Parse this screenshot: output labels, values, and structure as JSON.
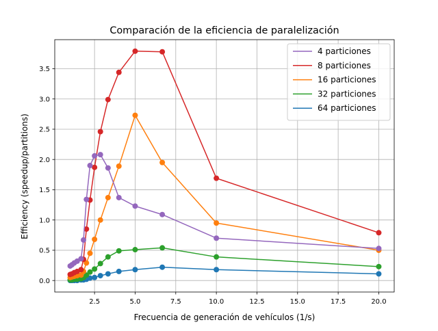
{
  "chart_data": {
    "type": "line",
    "title": "Comparación de la eficiencia de paralelización",
    "xlabel": "Frecuencia de generación de vehículos (1/s)",
    "ylabel": "Efficiency (speedup/partitions)",
    "xlim": [
      0.05,
      20.95
    ],
    "ylim": [
      -0.19,
      3.98
    ],
    "xticks": [
      2.5,
      5.0,
      7.5,
      10.0,
      12.5,
      15.0,
      17.5,
      20.0
    ],
    "xtick_labels": [
      "2.5",
      "5.0",
      "7.5",
      "10.0",
      "12.5",
      "15.0",
      "17.5",
      "20.0"
    ],
    "yticks": [
      0.0,
      0.5,
      1.0,
      1.5,
      2.0,
      2.5,
      3.0,
      3.5
    ],
    "ytick_labels": [
      "0.0",
      "0.5",
      "1.0",
      "1.5",
      "2.0",
      "2.5",
      "3.0",
      "3.5"
    ],
    "grid": true,
    "legend_position": "top-right",
    "series": [
      {
        "name": "4 particiones",
        "color": "#9467bd",
        "x": [
          1.0,
          1.11,
          1.25,
          1.43,
          1.67,
          1.82,
          2.0,
          2.22,
          2.5,
          2.86,
          3.33,
          4.0,
          5.0,
          6.67,
          10.0,
          20.0
        ],
        "y": [
          0.24,
          0.26,
          0.29,
          0.32,
          0.36,
          0.67,
          1.34,
          1.9,
          2.06,
          2.08,
          1.86,
          1.37,
          1.23,
          1.09,
          0.7,
          0.53
        ]
      },
      {
        "name": "8 particiones",
        "color": "#d62728",
        "x": [
          1.0,
          1.11,
          1.25,
          1.43,
          1.67,
          1.82,
          2.0,
          2.22,
          2.5,
          2.86,
          3.33,
          4.0,
          5.0,
          6.67,
          10.0,
          20.0
        ],
        "y": [
          0.1,
          0.11,
          0.13,
          0.15,
          0.18,
          0.35,
          0.85,
          1.33,
          1.87,
          2.46,
          2.99,
          3.44,
          3.79,
          3.78,
          1.69,
          0.79
        ]
      },
      {
        "name": "16 particiones",
        "color": "#ff7f0e",
        "x": [
          1.0,
          1.11,
          1.25,
          1.43,
          1.67,
          1.82,
          2.0,
          2.22,
          2.5,
          2.86,
          3.33,
          4.0,
          5.0,
          6.67,
          10.0,
          20.0
        ],
        "y": [
          0.05,
          0.06,
          0.07,
          0.08,
          0.09,
          0.15,
          0.29,
          0.45,
          0.68,
          1.0,
          1.37,
          1.89,
          2.73,
          1.95,
          0.95,
          0.5
        ]
      },
      {
        "name": "32 particiones",
        "color": "#2ca02c",
        "x": [
          1.0,
          1.11,
          1.25,
          1.43,
          1.67,
          1.82,
          2.0,
          2.22,
          2.5,
          2.86,
          3.33,
          4.0,
          5.0,
          6.67,
          10.0,
          20.0
        ],
        "y": [
          0.01,
          0.01,
          0.02,
          0.02,
          0.03,
          0.05,
          0.09,
          0.14,
          0.19,
          0.28,
          0.39,
          0.49,
          0.51,
          0.54,
          0.39,
          0.23
        ]
      },
      {
        "name": "64 particiones",
        "color": "#1f77b4",
        "x": [
          1.0,
          1.11,
          1.25,
          1.43,
          1.67,
          1.82,
          2.0,
          2.22,
          2.5,
          2.86,
          3.33,
          4.0,
          5.0,
          6.67,
          10.0,
          20.0
        ],
        "y": [
          0.0,
          0.0,
          0.0,
          0.0,
          0.01,
          0.01,
          0.02,
          0.04,
          0.05,
          0.08,
          0.11,
          0.15,
          0.18,
          0.22,
          0.18,
          0.11
        ]
      }
    ]
  }
}
